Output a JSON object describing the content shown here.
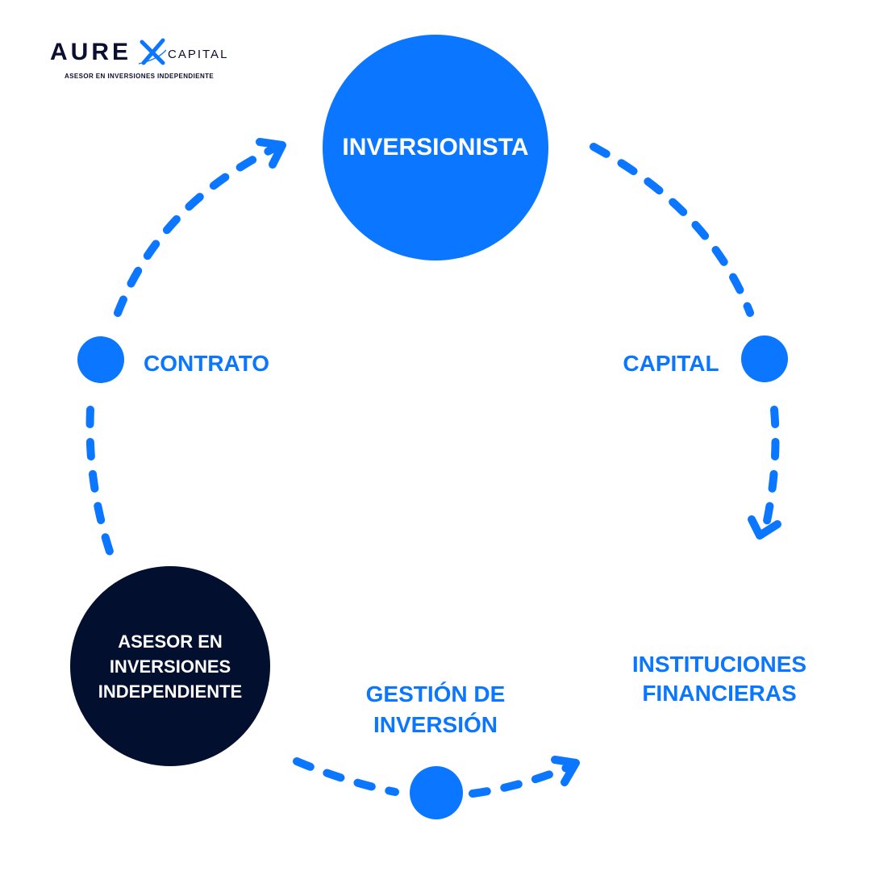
{
  "logo": {
    "word": "AURE",
    "capital": "CAPITAL",
    "tagline": "ASESOR EN INVERSIONES INDEPENDIENTE"
  },
  "nodes": {
    "investor": "INVERSIONISTA",
    "advisor": [
      "ASESOR EN",
      "INVERSIONES",
      "INDEPENDIENTE"
    ]
  },
  "labels": {
    "contract": "CONTRATO",
    "capital": "CAPITAL",
    "management": [
      "GESTIÓN DE",
      "INVERSIÓN"
    ],
    "institutions": [
      "INSTITUCIONES",
      "FINANCIERAS"
    ]
  },
  "colors": {
    "accent": "#0b76ff",
    "dark": "#020f2e",
    "text_on_node": "#ffffff"
  }
}
